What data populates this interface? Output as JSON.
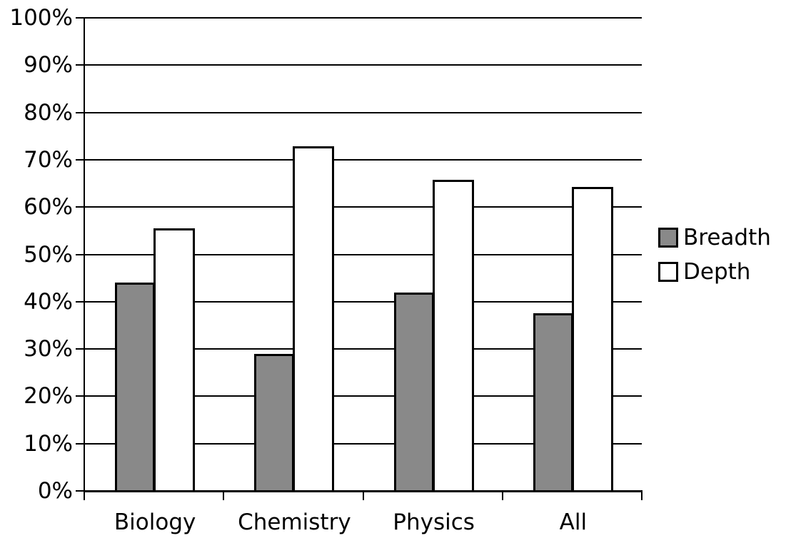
{
  "chart_data": {
    "type": "bar",
    "categories": [
      "Biology",
      "Chemistry",
      "Physics",
      "All"
    ],
    "series": [
      {
        "name": "Breadth",
        "color": "#898989",
        "values": [
          44,
          29,
          42,
          37.5
        ]
      },
      {
        "name": "Depth",
        "color": "#ffffff",
        "values": [
          55.5,
          72.8,
          65.8,
          64.3
        ]
      }
    ],
    "title": "",
    "xlabel": "",
    "ylabel": "",
    "ylim": [
      0,
      100
    ],
    "y_tick_step": 10,
    "y_ticks": [
      "0%",
      "10%",
      "20%",
      "30%",
      "40%",
      "50%",
      "60%",
      "70%",
      "80%",
      "90%",
      "100%"
    ],
    "grid": true,
    "legend_position": "right",
    "bar_border_color": "#000000",
    "axis_color": "#000000"
  },
  "legend": {
    "items": [
      {
        "label": "Breadth",
        "color": "#898989"
      },
      {
        "label": "Depth",
        "color": "#ffffff"
      }
    ]
  }
}
